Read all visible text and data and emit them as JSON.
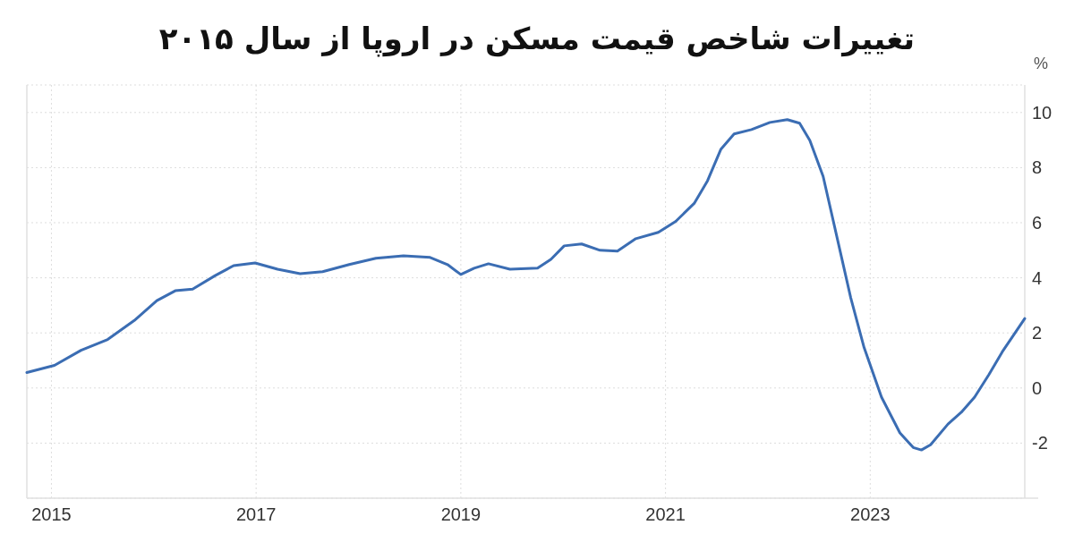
{
  "chart_data": {
    "type": "line",
    "title": "تغییرات شاخص قیمت مسکن در اروپا از سال ۲۰۱۵",
    "ylabel": "%",
    "xlim": [
      2014.76,
      2024.51
    ],
    "xticks": [
      2015,
      2017,
      2019,
      2021,
      2023
    ],
    "ylim": [
      -4,
      11
    ],
    "yticks": [
      {
        "value": -4,
        "label": null
      },
      -2,
      0,
      2,
      4,
      6,
      8,
      10
    ],
    "grid": true,
    "line_style": "solid",
    "series": [
      {
        "color": "#3b6db3",
        "x": [
          2014.76,
          2015.03,
          2015.29,
          2015.55,
          2015.81,
          2016.03,
          2016.21,
          2016.38,
          2016.6,
          2016.78,
          2016.99,
          2017.21,
          2017.43,
          2017.65,
          2017.91,
          2018.17,
          2018.44,
          2018.7,
          2018.87,
          2019.0,
          2019.13,
          2019.27,
          2019.48,
          2019.75,
          2019.88,
          2020.01,
          2020.18,
          2020.36,
          2020.53,
          2020.71,
          2020.93,
          2021.1,
          2021.28,
          2021.41,
          2021.54,
          2021.67,
          2021.84,
          2022.02,
          2022.19,
          2022.31,
          2022.41,
          2022.54,
          2022.67,
          2022.81,
          2022.94,
          2023.11,
          2023.29,
          2023.42,
          2023.5,
          2023.59,
          2023.76,
          2023.89,
          2024.02,
          2024.16,
          2024.29,
          2024.51
        ],
        "values": [
          0.56,
          0.82,
          1.37,
          1.76,
          2.45,
          3.17,
          3.53,
          3.59,
          4.08,
          4.44,
          4.54,
          4.31,
          4.15,
          4.22,
          4.48,
          4.71,
          4.8,
          4.74,
          4.48,
          4.12,
          4.35,
          4.51,
          4.31,
          4.35,
          4.67,
          5.16,
          5.23,
          5.0,
          4.97,
          5.42,
          5.65,
          6.05,
          6.7,
          7.52,
          8.66,
          9.22,
          9.38,
          9.64,
          9.74,
          9.61,
          8.99,
          7.68,
          5.56,
          3.27,
          1.47,
          -0.33,
          -1.63,
          -2.16,
          -2.25,
          -2.06,
          -1.31,
          -0.88,
          -0.33,
          0.49,
          1.31,
          2.52
        ]
      }
    ]
  }
}
